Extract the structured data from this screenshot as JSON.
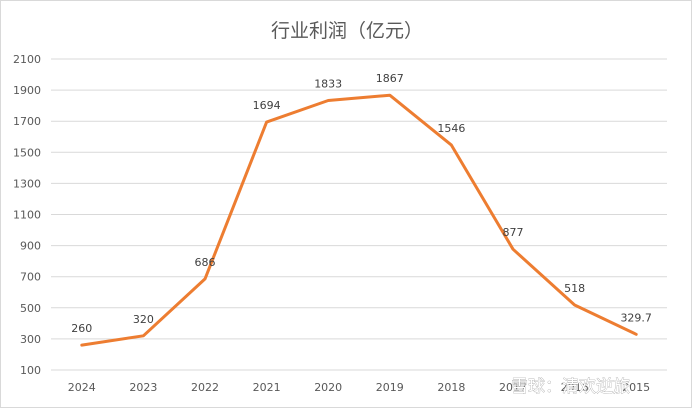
{
  "chart_data": {
    "type": "line",
    "title": "行业利润（亿元）",
    "xlabel": "",
    "ylabel": "",
    "categories": [
      "2024",
      "2023",
      "2022",
      "2021",
      "2020",
      "2019",
      "2018",
      "2017",
      "2016",
      "2015"
    ],
    "series": [
      {
        "values": [
          260,
          320,
          686,
          1694,
          1833,
          1867,
          1546,
          877,
          518,
          329.7
        ],
        "labels": [
          "260",
          "320",
          "686",
          "1694",
          "1833",
          "1867",
          "1546",
          "877",
          "518",
          "329.7"
        ],
        "color": "#ed7d31"
      }
    ],
    "yticks": [
      "100",
      "300",
      "500",
      "700",
      "900",
      "1100",
      "1300",
      "1500",
      "1700",
      "1900",
      "2100"
    ],
    "ylim": [
      100,
      2100
    ],
    "grid": true,
    "legend": "none"
  },
  "watermark": {
    "text": "雪球：清欢逆旅"
  },
  "colors": {
    "line": "#ed7d31",
    "grid": "#d9d9d9",
    "text": "#595959"
  }
}
